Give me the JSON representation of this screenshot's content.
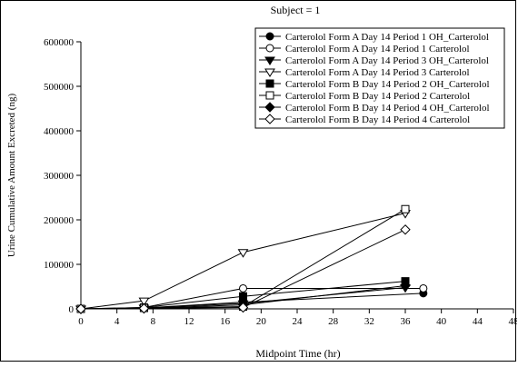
{
  "chart_data": {
    "type": "line",
    "title": "Subject = 1",
    "xlabel": "Midpoint Time (hr)",
    "ylabel": "Urine Cumulative Amount Excreted (ng)",
    "xlim": [
      0,
      48
    ],
    "ylim": [
      0,
      600000
    ],
    "xticks": [
      0,
      4,
      8,
      12,
      16,
      20,
      24,
      28,
      32,
      36,
      40,
      44,
      48
    ],
    "yticks": [
      0,
      100000,
      200000,
      300000,
      400000,
      500000,
      600000
    ],
    "xtick_labels": [
      "0",
      "4",
      "8",
      "12",
      "16",
      "20",
      "24",
      "28",
      "32",
      "36",
      "40",
      "44",
      "48"
    ],
    "ytick_labels": [
      "0",
      "100000",
      "200000",
      "300000",
      "400000",
      "500000",
      "600000"
    ],
    "grid": false,
    "legend_position": "top-right",
    "series": [
      {
        "name": "Carterolol Form A  Day 14 Period 1 OH_Carterolol",
        "marker": "circle-filled",
        "x": [
          0,
          7,
          18,
          38
        ],
        "y": [
          0,
          2000,
          15000,
          35000
        ]
      },
      {
        "name": "Carterolol Form A  Day 14 Period 1 Carterolol",
        "marker": "circle-open",
        "x": [
          0,
          7,
          18,
          38
        ],
        "y": [
          0,
          3000,
          46000,
          46000
        ]
      },
      {
        "name": "Carterolol Form A  Day 14 Period 3 OH_Carterolol",
        "marker": "triangle-down-filled",
        "x": [
          0,
          7,
          18,
          36
        ],
        "y": [
          0,
          2000,
          12000,
          48000
        ]
      },
      {
        "name": "Carterolol Form A  Day 14 Period 3 Carterolol",
        "marker": "triangle-down-open",
        "x": [
          0,
          7,
          18,
          36
        ],
        "y": [
          0,
          18000,
          127000,
          215000
        ]
      },
      {
        "name": "Carterolol Form B  Day 14 Period 2 OH_Carterolol",
        "marker": "square-filled",
        "x": [
          0,
          7,
          18,
          36
        ],
        "y": [
          0,
          3000,
          28000,
          62000
        ]
      },
      {
        "name": "Carterolol Form B  Day 14 Period 2 Carterolol",
        "marker": "square-open",
        "x": [
          0,
          7,
          18,
          36
        ],
        "y": [
          0,
          2000,
          5000,
          224000
        ]
      },
      {
        "name": "Carterolol Form B  Day 14 Period 4 OH_Carterolol",
        "marker": "diamond-filled",
        "x": [
          0,
          7,
          18,
          36
        ],
        "y": [
          0,
          1000,
          9000,
          52000
        ]
      },
      {
        "name": "Carterolol Form B  Day 14 Period 4 Carterolol",
        "marker": "diamond-open",
        "x": [
          0,
          7,
          18,
          36
        ],
        "y": [
          0,
          1000,
          3000,
          178000
        ]
      }
    ]
  }
}
